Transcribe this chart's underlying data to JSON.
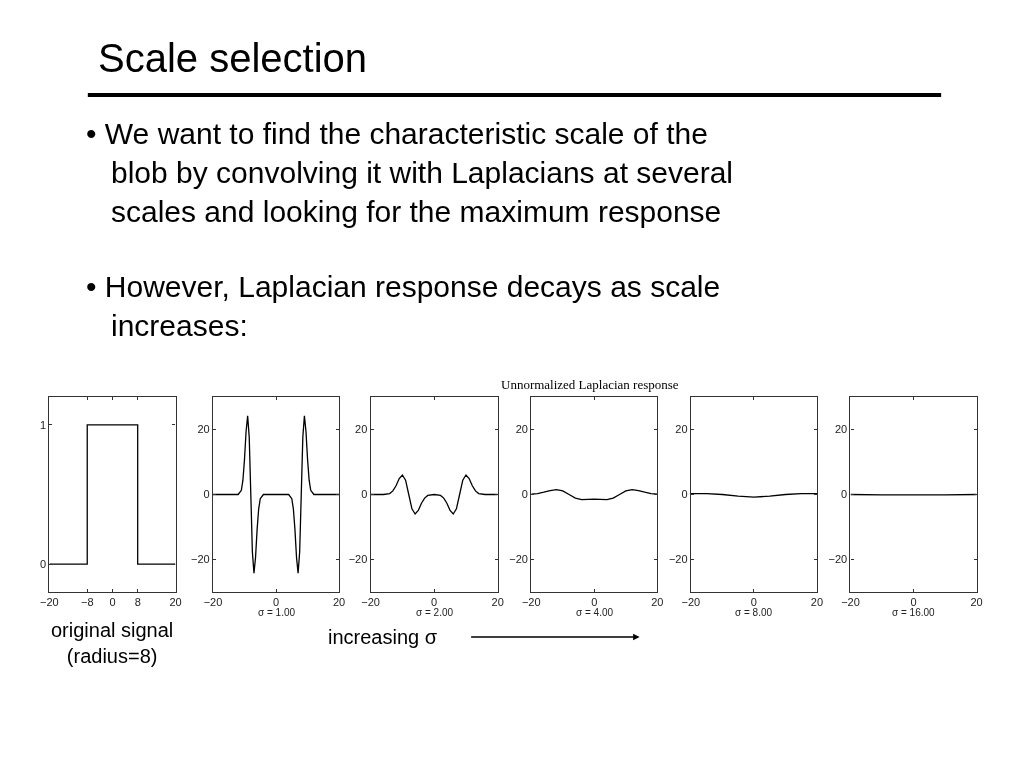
{
  "chart_data": [
    {
      "type": "line",
      "title": "Scale selection",
      "xlabel": "original signal (radius=8)",
      "annotations": [
        "• We want to find the characteristic scale of the blob by convolving it with Laplacians at several scales and looking for the maximum response",
        "• However, Laplacian response decays as scale increases:",
        "increasing σ",
        "Unnormalized Laplacian response"
      ],
      "x": [
        -20,
        -8,
        -8,
        8,
        8,
        20
      ],
      "values": [
        0,
        0,
        1,
        1,
        0,
        0
      ],
      "color": "#000000",
      "xlim": [
        -20,
        20
      ],
      "xticks": [
        -20,
        -8,
        0,
        8,
        20
      ],
      "ylim": [
        -0.2,
        1.2
      ],
      "yticks": [
        0,
        1
      ]
    },
    {
      "type": "line",
      "xlabel": "σ = 1.00",
      "x": [
        -20,
        -12,
        -11,
        -10.5,
        -10,
        -9.5,
        -9,
        -8.5,
        -8,
        -7.5,
        -7,
        -6.5,
        -6,
        -5.5,
        -5,
        -4,
        0,
        4,
        5,
        5.5,
        6,
        6.5,
        7,
        7.5,
        8,
        8.5,
        9,
        9.5,
        10,
        10.5,
        11,
        12,
        20
      ],
      "values": [
        0,
        0,
        1.3,
        4.4,
        10.8,
        19.4,
        24.2,
        17.6,
        0,
        -17.6,
        -24.2,
        -19.4,
        -10.8,
        -4.4,
        -1.3,
        0,
        0,
        0,
        -1.3,
        -4.4,
        -10.8,
        -19.4,
        -24.2,
        -17.6,
        0,
        17.6,
        24.2,
        19.4,
        10.8,
        4.4,
        1.3,
        0,
        0
      ],
      "color": "#000000",
      "xlim": [
        -20,
        20
      ],
      "xticks": [
        -20,
        0,
        20
      ],
      "ylim": [
        -30,
        30
      ],
      "yticks": [
        -20,
        0,
        20
      ]
    },
    {
      "type": "line",
      "xlabel": "σ = 2.00",
      "x": [
        -20,
        -16,
        -14,
        -13,
        -12,
        -11,
        -10,
        -9,
        -8,
        -7,
        -6,
        -5,
        -4,
        -3,
        -2,
        0,
        2,
        3,
        4,
        5,
        6,
        7,
        8,
        9,
        10,
        11,
        12,
        13,
        14,
        16,
        20
      ],
      "values": [
        0,
        0,
        0.3,
        1.1,
        2.7,
        4.9,
        6.0,
        4.4,
        0,
        -4.4,
        -6.0,
        -4.9,
        -2.7,
        -1.1,
        -0.3,
        0,
        -0.3,
        -1.1,
        -2.7,
        -4.9,
        -6.0,
        -4.4,
        0,
        4.4,
        6.0,
        4.9,
        2.7,
        1.1,
        0.3,
        0,
        0
      ],
      "color": "#000000",
      "xlim": [
        -20,
        20
      ],
      "xticks": [
        -20,
        0,
        20
      ],
      "ylim": [
        -30,
        30
      ],
      "yticks": [
        -20,
        0,
        20
      ]
    },
    {
      "type": "line",
      "xlabel": "σ = 4.00",
      "x": [
        -20,
        -18,
        -16,
        -14,
        -12,
        -10,
        -8,
        -6,
        -4,
        -2,
        0,
        2,
        4,
        6,
        8,
        10,
        12,
        14,
        16,
        18,
        20
      ],
      "values": [
        0.1,
        0.3,
        0.7,
        1.2,
        1.5,
        1.1,
        0,
        -1.1,
        -1.6,
        -1.5,
        -1.4,
        -1.5,
        -1.6,
        -1.1,
        0,
        1.1,
        1.5,
        1.2,
        0.7,
        0.3,
        0.1
      ],
      "color": "#000000",
      "xlim": [
        -20,
        20
      ],
      "xticks": [
        -20,
        0,
        20
      ],
      "ylim": [
        -30,
        30
      ],
      "yticks": [
        -20,
        0,
        20
      ]
    },
    {
      "type": "line",
      "xlabel": "σ = 8.00",
      "x": [
        -20,
        -15,
        -10,
        -5,
        0,
        5,
        10,
        15,
        20
      ],
      "values": [
        0.3,
        0.3,
        0.0,
        -0.5,
        -0.8,
        -0.5,
        0.0,
        0.3,
        0.3
      ],
      "color": "#000000",
      "xlim": [
        -20,
        20
      ],
      "xticks": [
        -20,
        0,
        20
      ],
      "ylim": [
        -30,
        30
      ],
      "yticks": [
        -20,
        0,
        20
      ]
    },
    {
      "type": "line",
      "xlabel": "σ = 16.00",
      "x": [
        -20,
        -10,
        0,
        10,
        20
      ],
      "values": [
        0,
        -0.1,
        -0.1,
        -0.1,
        0
      ],
      "color": "#000000",
      "xlim": [
        -20,
        20
      ],
      "xticks": [
        -20,
        0,
        20
      ],
      "ylim": [
        -30,
        30
      ],
      "yticks": [
        -20,
        0,
        20
      ]
    }
  ]
}
